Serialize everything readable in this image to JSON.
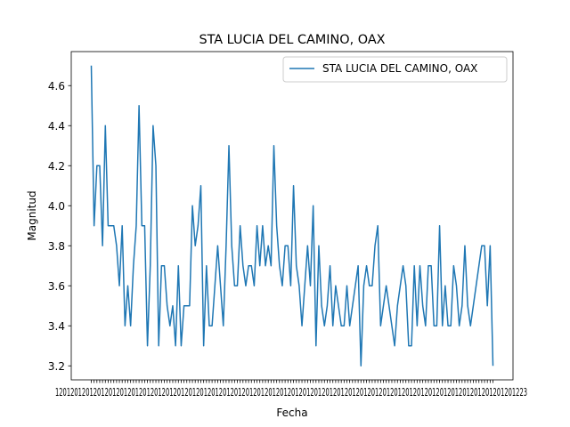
{
  "chart_data": {
    "type": "line",
    "title": "STA LUCIA DEL CAMINO, OAX",
    "xlabel": "Fecha",
    "ylabel": "Magnitud",
    "x_tick_labels_overlapping": true,
    "x_tick_labels_legible": [
      "12",
      "23"
    ],
    "ylim": [
      3.13,
      4.77
    ],
    "yticks": [
      "3.2",
      "3.4",
      "3.6",
      "3.8",
      "4.0",
      "4.2",
      "4.4",
      "4.6"
    ],
    "grid": false,
    "legend": "top-right",
    "series": [
      {
        "name": "STA LUCIA DEL CAMINO, OAX",
        "color": "#1f77b4",
        "values": [
          4.7,
          3.9,
          4.2,
          4.2,
          3.8,
          4.4,
          3.9,
          3.9,
          3.9,
          3.8,
          3.6,
          3.9,
          3.4,
          3.6,
          3.4,
          3.7,
          3.9,
          4.5,
          3.9,
          3.9,
          3.3,
          3.7,
          4.4,
          4.2,
          3.3,
          3.7,
          3.7,
          3.5,
          3.4,
          3.5,
          3.3,
          3.7,
          3.3,
          3.5,
          3.5,
          3.5,
          4.0,
          3.8,
          3.9,
          4.1,
          3.3,
          3.7,
          3.4,
          3.4,
          3.6,
          3.8,
          3.6,
          3.4,
          3.8,
          4.3,
          3.8,
          3.6,
          3.6,
          3.9,
          3.7,
          3.6,
          3.7,
          3.7,
          3.6,
          3.9,
          3.7,
          3.9,
          3.7,
          3.8,
          3.7,
          4.3,
          3.9,
          3.7,
          3.6,
          3.8,
          3.8,
          3.6,
          4.1,
          3.7,
          3.6,
          3.4,
          3.6,
          3.8,
          3.6,
          4.0,
          3.3,
          3.8,
          3.5,
          3.4,
          3.5,
          3.7,
          3.4,
          3.6,
          3.5,
          3.4,
          3.4,
          3.6,
          3.4,
          3.5,
          3.6,
          3.7,
          3.2,
          3.6,
          3.7,
          3.6,
          3.6,
          3.8,
          3.9,
          3.4,
          3.5,
          3.6,
          3.5,
          3.4,
          3.3,
          3.5,
          3.6,
          3.7,
          3.6,
          3.3,
          3.3,
          3.7,
          3.4,
          3.7,
          3.5,
          3.4,
          3.7,
          3.7,
          3.4,
          3.4,
          3.9,
          3.4,
          3.6,
          3.4,
          3.4,
          3.7,
          3.6,
          3.4,
          3.5,
          3.8,
          3.5,
          3.4,
          3.5,
          3.6,
          3.7,
          3.8,
          3.8,
          3.5,
          3.8,
          3.2
        ]
      }
    ]
  }
}
